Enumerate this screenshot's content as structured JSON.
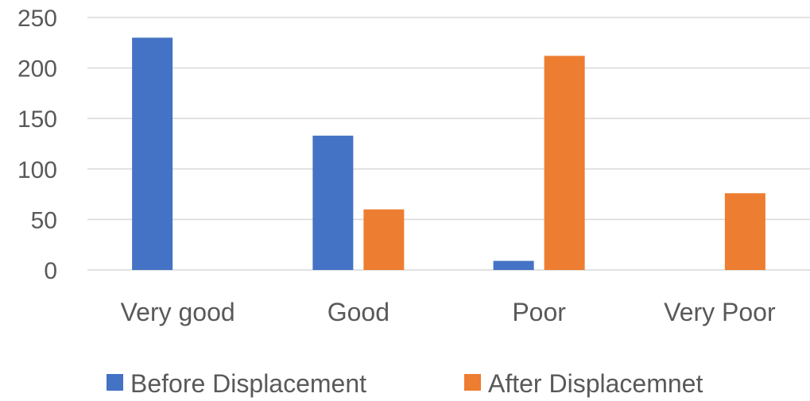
{
  "chart_data": {
    "type": "bar",
    "categories": [
      "Very good",
      "Good",
      "Poor",
      "Very Poor"
    ],
    "series": [
      {
        "name": "Before Displacement",
        "color": "#4472C4",
        "values": [
          230,
          133,
          9,
          0
        ]
      },
      {
        "name": "After Displacemnet",
        "color": "#ED7D31",
        "values": [
          0,
          60,
          212,
          76
        ]
      }
    ],
    "yticks": [
      0,
      50,
      100,
      150,
      200,
      250
    ],
    "ylim": [
      0,
      250
    ],
    "grid": true,
    "legend_position": "bottom"
  }
}
